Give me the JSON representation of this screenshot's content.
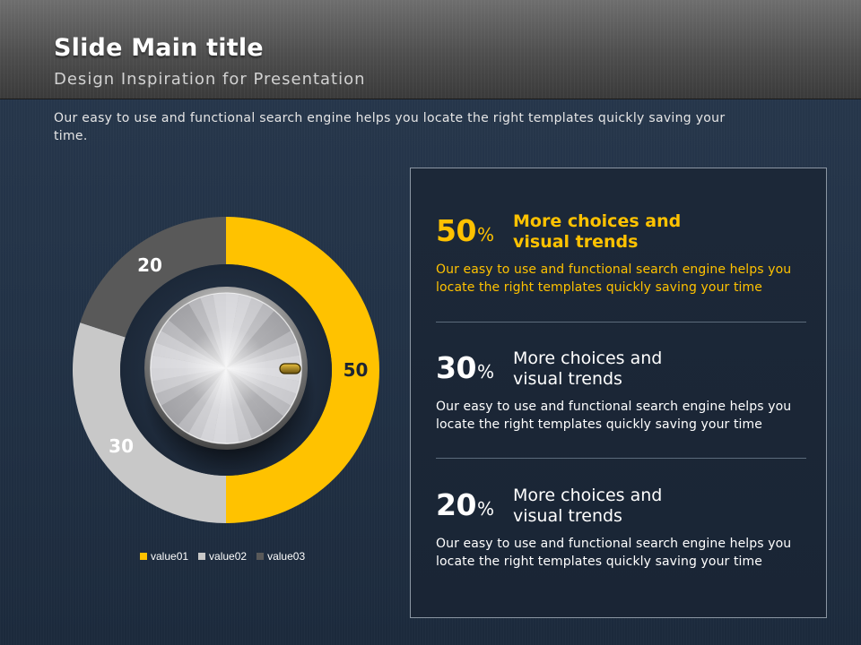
{
  "header": {
    "title": "Slide Main title",
    "subtitle": "Design Inspiration for Presentation"
  },
  "intro": "Our easy to use and functional search engine helps you locate the right templates quickly saving your time.",
  "colors": {
    "value01": "#ffc200",
    "value02": "#c8c8c8",
    "value03": "#595959",
    "accent": "#ffc200"
  },
  "chart_data": {
    "type": "pie",
    "variant": "donut",
    "categories": [
      "value01",
      "value02",
      "value03"
    ],
    "values": [
      50,
      30,
      20
    ],
    "data_labels": [
      "50",
      "30",
      "20"
    ],
    "legend": "bottom",
    "title": "",
    "center_graphic": "metal-knob"
  },
  "stats": [
    {
      "percent": "50",
      "percent_sign": "%",
      "heading": [
        "More choices and",
        "visual trends"
      ],
      "desc": [
        "Our easy to use and functional search engine helps you",
        "locate the right templates quickly saving your time"
      ],
      "highlight": true
    },
    {
      "percent": "30",
      "percent_sign": "%",
      "heading": [
        "More choices and",
        "visual trends"
      ],
      "desc": [
        "Our easy to use and functional search engine helps you",
        "locate the right templates quickly saving your time"
      ],
      "highlight": false
    },
    {
      "percent": "20",
      "percent_sign": "%",
      "heading": [
        "More choices and",
        "visual trends"
      ],
      "desc": [
        "Our easy to use and functional search engine helps you",
        "locate the right templates quickly saving your time"
      ],
      "highlight": false
    }
  ]
}
